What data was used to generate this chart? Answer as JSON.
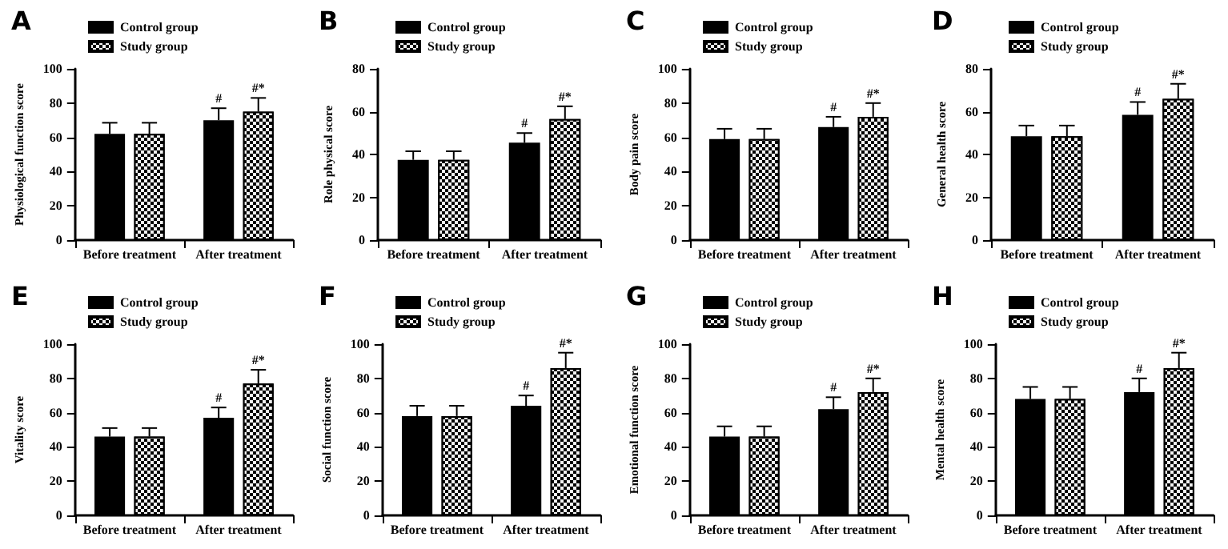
{
  "chart_data": [
    {
      "type": "bar",
      "title": "A",
      "ylabel": "Physiological function score",
      "categories": [
        "Before treatment",
        "After treatment"
      ],
      "ylim": [
        0,
        100
      ],
      "yticks": [
        0,
        20,
        40,
        60,
        80,
        100
      ],
      "legend": "top",
      "grid": false,
      "series": [
        {
          "name": "Control group",
          "color": "#000000",
          "values": [
            62,
            70
          ],
          "errors": [
            [
              62,
              68.5
            ],
            [
              70,
              77
            ]
          ]
        },
        {
          "name": "Study group",
          "color": "#000000",
          "values": [
            62,
            75
          ],
          "errors": [
            [
              62,
              68.5
            ],
            [
              75,
              83
            ]
          ]
        }
      ],
      "annotations": [
        {
          "text": "#",
          "x": "After treatment",
          "y": 70
        },
        {
          "text": "#*",
          "x": "After treatment",
          "y": 75
        }
      ]
    },
    {
      "type": "bar",
      "title": "B",
      "ylabel": "Role physical score",
      "categories": [
        "Before treatment",
        "After treatment"
      ],
      "ylim": [
        0,
        80
      ],
      "yticks": [
        0,
        20,
        40,
        60,
        80
      ],
      "legend": "top",
      "grid": false,
      "series": [
        {
          "name": "Control group",
          "color": "#000000",
          "values": [
            37.5,
            45.5
          ],
          "errors": [
            [
              37.5,
              41.5
            ],
            [
              45.5,
              50
            ]
          ]
        },
        {
          "name": "Study group",
          "color": "#000000",
          "values": [
            37.5,
            56.5
          ],
          "errors": [
            [
              37.5,
              41.5
            ],
            [
              56.5,
              62.5
            ]
          ]
        }
      ],
      "annotations": [
        {
          "text": "#",
          "x": "After treatment",
          "y": 45.5
        },
        {
          "text": "#*",
          "x": "After treatment",
          "y": 56.5
        }
      ]
    },
    {
      "type": "bar",
      "title": "C",
      "ylabel": "Body pain score",
      "categories": [
        "Before treatment",
        "After treatment"
      ],
      "ylim": [
        0,
        100
      ],
      "yticks": [
        0,
        20,
        40,
        60,
        80,
        100
      ],
      "legend": "top",
      "grid": false,
      "series": [
        {
          "name": "Control group",
          "color": "#000000",
          "values": [
            59,
            66
          ],
          "errors": [
            [
              59,
              65
            ],
            [
              66,
              72
            ]
          ]
        },
        {
          "name": "Study group",
          "color": "#000000",
          "values": [
            59,
            72
          ],
          "errors": [
            [
              59,
              65
            ],
            [
              72,
              80
            ]
          ]
        }
      ],
      "annotations": [
        {
          "text": "#",
          "x": "After treatment",
          "y": 66
        },
        {
          "text": "#*",
          "x": "After treatment",
          "y": 72
        }
      ]
    },
    {
      "type": "bar",
      "title": "D",
      "ylabel": "General health score",
      "categories": [
        "Before treatment",
        "After treatment"
      ],
      "ylim": [
        0,
        80
      ],
      "yticks": [
        0,
        20,
        40,
        60,
        80
      ],
      "legend": "top",
      "grid": false,
      "series": [
        {
          "name": "Control group",
          "color": "#000000",
          "values": [
            48.5,
            58.5
          ],
          "errors": [
            [
              48.5,
              53.5
            ],
            [
              58.5,
              64.5
            ]
          ]
        },
        {
          "name": "Study group",
          "color": "#000000",
          "values": [
            48.5,
            66
          ],
          "errors": [
            [
              48.5,
              53.5
            ],
            [
              66,
              73
            ]
          ]
        }
      ],
      "annotations": [
        {
          "text": "#",
          "x": "After treatment",
          "y": 58.5
        },
        {
          "text": "#*",
          "x": "After treatment",
          "y": 66
        }
      ]
    },
    {
      "type": "bar",
      "title": "E",
      "ylabel": "Vitality score",
      "categories": [
        "Before treatment",
        "After treatment"
      ],
      "ylim": [
        0,
        100
      ],
      "yticks": [
        0,
        20,
        40,
        60,
        80,
        100
      ],
      "legend": "top",
      "grid": false,
      "series": [
        {
          "name": "Control group",
          "color": "#000000",
          "values": [
            46,
            57
          ],
          "errors": [
            [
              46,
              51
            ],
            [
              57,
              63
            ]
          ]
        },
        {
          "name": "Study group",
          "color": "#000000",
          "values": [
            46,
            77
          ],
          "errors": [
            [
              46,
              51
            ],
            [
              77,
              85
            ]
          ]
        }
      ],
      "annotations": [
        {
          "text": "#",
          "x": "After treatment",
          "y": 57
        },
        {
          "text": "#*",
          "x": "After treatment",
          "y": 77
        }
      ]
    },
    {
      "type": "bar",
      "title": "F",
      "ylabel": "Social function score",
      "categories": [
        "Before treatment",
        "After treatment"
      ],
      "ylim": [
        0,
        100
      ],
      "yticks": [
        0,
        20,
        40,
        60,
        80,
        100
      ],
      "legend": "top",
      "grid": false,
      "series": [
        {
          "name": "Control group",
          "color": "#000000",
          "values": [
            58,
            64
          ],
          "errors": [
            [
              58,
              64
            ],
            [
              64,
              70
            ]
          ]
        },
        {
          "name": "Study group",
          "color": "#000000",
          "values": [
            58,
            86
          ],
          "errors": [
            [
              58,
              64
            ],
            [
              86,
              95
            ]
          ]
        }
      ],
      "annotations": [
        {
          "text": "#",
          "x": "After treatment",
          "y": 64
        },
        {
          "text": "#*",
          "x": "After treatment",
          "y": 86
        }
      ]
    },
    {
      "type": "bar",
      "title": "G",
      "ylabel": "Emotional function score",
      "categories": [
        "Before treatment",
        "After treatment"
      ],
      "ylim": [
        0,
        100
      ],
      "yticks": [
        0,
        20,
        40,
        60,
        80,
        100
      ],
      "legend": "top",
      "grid": false,
      "series": [
        {
          "name": "Control group",
          "color": "#000000",
          "values": [
            46,
            62
          ],
          "errors": [
            [
              46,
              52
            ],
            [
              62,
              69
            ]
          ]
        },
        {
          "name": "Study group",
          "color": "#000000",
          "values": [
            46,
            72
          ],
          "errors": [
            [
              46,
              52
            ],
            [
              72,
              80
            ]
          ]
        }
      ],
      "annotations": [
        {
          "text": "#",
          "x": "After treatment",
          "y": 62
        },
        {
          "text": "#*",
          "x": "After treatment",
          "y": 72
        }
      ]
    },
    {
      "type": "bar",
      "title": "H",
      "ylabel": "Mental health score",
      "categories": [
        "Before treatment",
        "After treatment"
      ],
      "ylim": [
        0,
        100
      ],
      "yticks": [
        0,
        20,
        40,
        60,
        80,
        100
      ],
      "legend": "top",
      "grid": false,
      "series": [
        {
          "name": "Control group",
          "color": "#000000",
          "values": [
            68,
            72
          ],
          "errors": [
            [
              68,
              75
            ],
            [
              72,
              80
            ]
          ]
        },
        {
          "name": "Study group",
          "color": "#000000",
          "values": [
            68,
            86
          ],
          "errors": [
            [
              68,
              75
            ],
            [
              86,
              95
            ]
          ]
        }
      ],
      "annotations": [
        {
          "text": "#",
          "x": "After treatment",
          "y": 72
        },
        {
          "text": "#*",
          "x": "After treatment",
          "y": 86
        }
      ]
    }
  ]
}
